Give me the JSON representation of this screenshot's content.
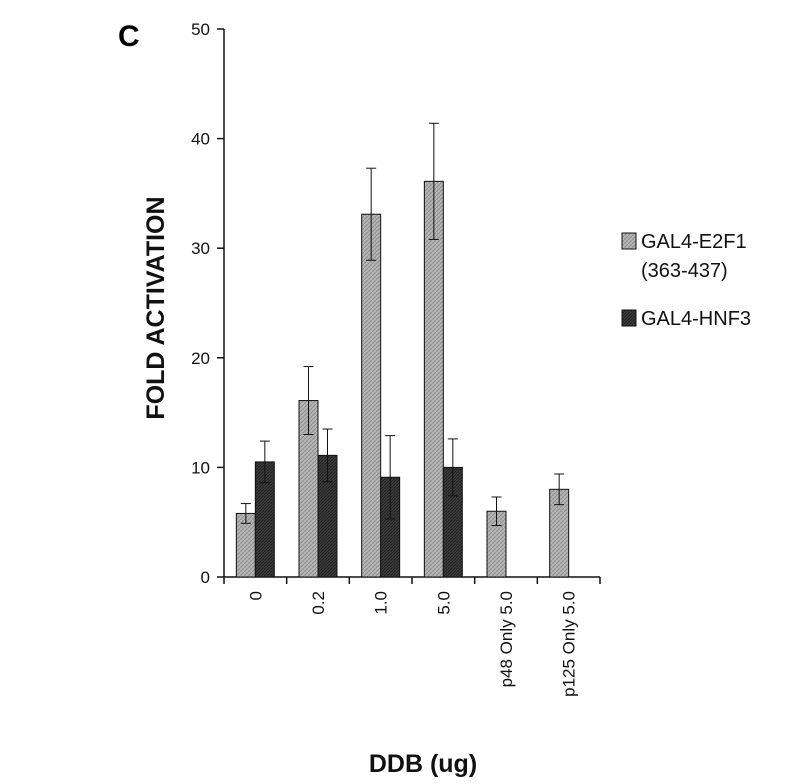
{
  "panel_label": "C",
  "chart_data": {
    "type": "bar",
    "categories": [
      "0",
      "0.2",
      "1.0",
      "5.0",
      "p48 Only 5.0",
      "p125 Only 5.0"
    ],
    "series": [
      {
        "name": "GAL4-E2F1 (363-437)",
        "legend_lines": [
          "GAL4-E2F1",
          "(363-437)"
        ],
        "color": "#a9a9a9",
        "values": [
          5.8,
          16.1,
          33.1,
          36.1,
          6.0,
          8.0
        ],
        "errors": [
          0.9,
          3.1,
          4.2,
          5.3,
          1.3,
          1.4
        ]
      },
      {
        "name": "GAL4-HNF3",
        "legend_lines": [
          "GAL4-HNF3"
        ],
        "color": "#3a3a3a",
        "values": [
          10.5,
          11.1,
          9.1,
          10.0,
          null,
          null
        ],
        "errors": [
          1.9,
          2.4,
          3.8,
          2.6,
          null,
          null
        ]
      }
    ],
    "xlabel": "DDB (ug)",
    "ylabel": "FOLD ACTIVATION",
    "ylim": [
      0,
      50
    ],
    "yticks": [
      0,
      10,
      20,
      30,
      40,
      50
    ],
    "grid": false,
    "legend_position": "right"
  }
}
